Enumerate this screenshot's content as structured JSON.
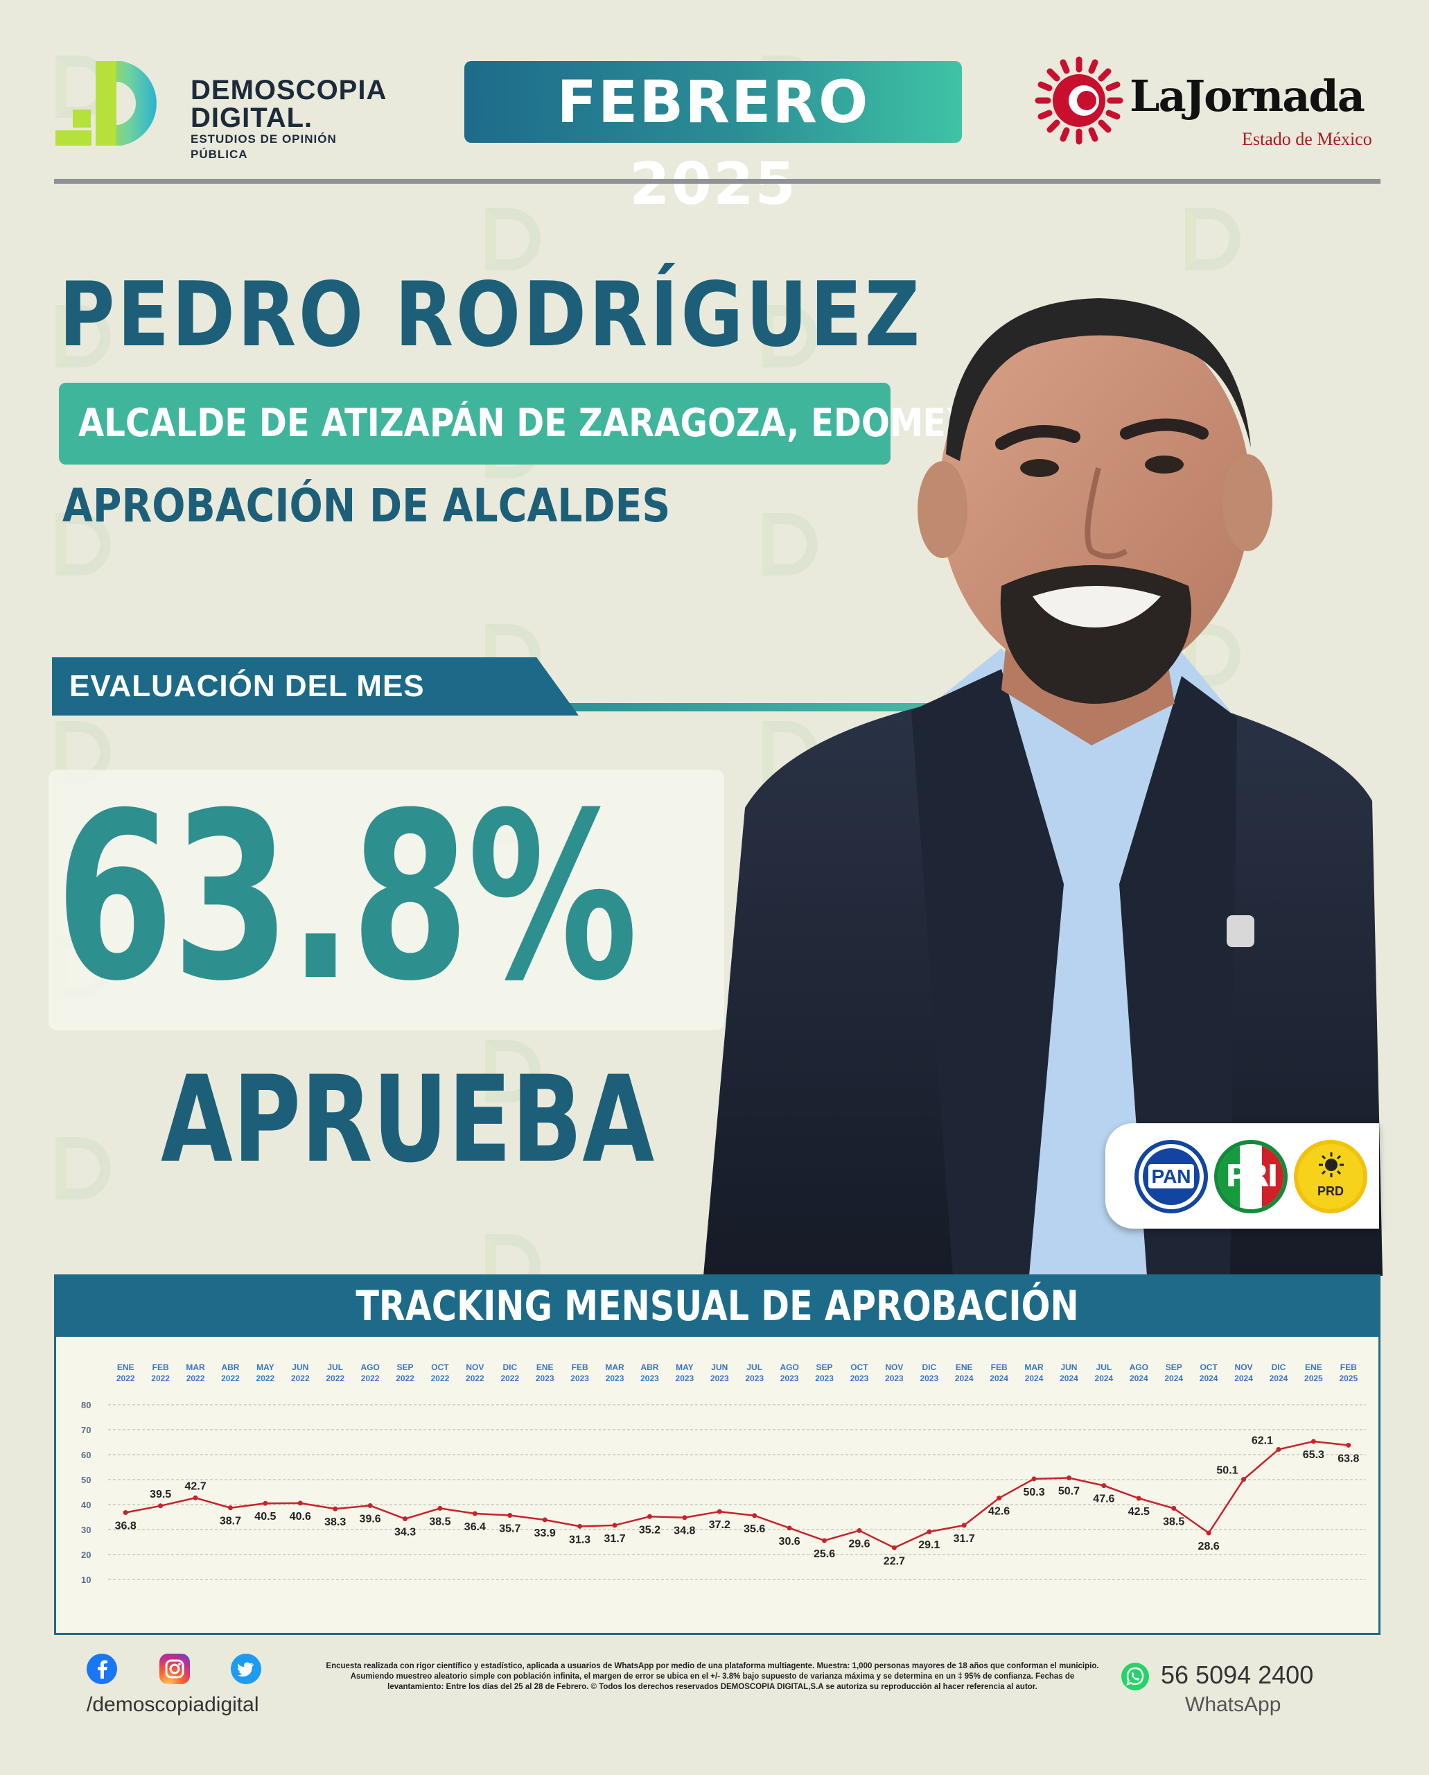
{
  "header": {
    "brand_line1": "DEMOSCOPIA",
    "brand_line2": "DIGITAL.",
    "brand_tagline": "ESTUDIOS DE OPINIÓN PÚBLICA",
    "date_badge": "FEBRERO 2025",
    "partner_name": "LaJornada",
    "partner_sub": "Estado de México"
  },
  "profile": {
    "name": "PEDRO RODRÍGUEZ",
    "role": "ALCALDE DE ATIZAPÁN DE ZARAGOZA, EDOMEX.",
    "subtitle": "APROBACIÓN DE ALCALDES"
  },
  "evaluation": {
    "tab_label": "EVALUACIÓN DEL MES",
    "value": "63.8%",
    "verdict": "APRUEBA"
  },
  "parties": [
    {
      "name": "PAN",
      "color": "#1245a1"
    },
    {
      "name": "PRI",
      "color": "#148a3b"
    },
    {
      "name": "PRD",
      "color": "#f7d21b"
    }
  ],
  "tracking": {
    "title": "TRACKING MENSUAL DE APROBACIÓN"
  },
  "chart_data": {
    "type": "line",
    "categories": [
      [
        "ENE",
        "2022"
      ],
      [
        "FEB",
        "2022"
      ],
      [
        "MAR",
        "2022"
      ],
      [
        "ABR",
        "2022"
      ],
      [
        "MAY",
        "2022"
      ],
      [
        "JUN",
        "2022"
      ],
      [
        "JUL",
        "2022"
      ],
      [
        "AGO",
        "2022"
      ],
      [
        "SEP",
        "2022"
      ],
      [
        "OCT",
        "2022"
      ],
      [
        "NOV",
        "2022"
      ],
      [
        "DIC",
        "2022"
      ],
      [
        "ENE",
        "2023"
      ],
      [
        "FEB",
        "2023"
      ],
      [
        "MAR",
        "2023"
      ],
      [
        "ABR",
        "2023"
      ],
      [
        "MAY",
        "2023"
      ],
      [
        "JUN",
        "2023"
      ],
      [
        "JUL",
        "2023"
      ],
      [
        "AGO",
        "2023"
      ],
      [
        "SEP",
        "2023"
      ],
      [
        "OCT",
        "2023"
      ],
      [
        "NOV",
        "2023"
      ],
      [
        "DIC",
        "2023"
      ],
      [
        "ENE",
        "2024"
      ],
      [
        "FEB",
        "2024"
      ],
      [
        "MAR",
        "2024"
      ],
      [
        "JUN",
        "2024"
      ],
      [
        "JUL",
        "2024"
      ],
      [
        "AGO",
        "2024"
      ],
      [
        "SEP",
        "2024"
      ],
      [
        "OCT",
        "2024"
      ],
      [
        "NOV",
        "2024"
      ],
      [
        "DIC",
        "2024"
      ],
      [
        "ENE",
        "2025"
      ],
      [
        "FEB",
        "2025"
      ]
    ],
    "values": [
      36.8,
      39.5,
      42.7,
      38.7,
      40.5,
      40.6,
      38.3,
      39.6,
      34.3,
      38.5,
      36.4,
      35.7,
      33.9,
      31.3,
      31.7,
      35.2,
      34.8,
      37.2,
      35.6,
      30.6,
      25.6,
      29.6,
      22.7,
      29.1,
      31.7,
      42.6,
      50.3,
      50.7,
      47.6,
      42.5,
      38.5,
      28.6,
      50.1,
      62.1,
      65.3,
      63.8
    ],
    "label_pos": [
      "b",
      "t",
      "t",
      "b",
      "b",
      "b",
      "b",
      "b",
      "b",
      "b",
      "b",
      "b",
      "b",
      "b",
      "b",
      "b",
      "b",
      "b",
      "b",
      "b",
      "b",
      "b",
      "b",
      "b",
      "b",
      "b",
      "b",
      "b",
      "b",
      "b",
      "b",
      "b",
      "l",
      "l",
      "b",
      "b"
    ],
    "yticks": [
      80,
      70,
      60,
      50,
      40,
      30,
      20,
      10
    ],
    "ylim": [
      10,
      80
    ],
    "line_color": "#c8232a",
    "grid": true
  },
  "footer": {
    "handle": "/demoscopiadigital",
    "disclaimer": "Encuesta realizada con rigor científico y estadístico, aplicada a usuarios de WhatsApp por medio de una plataforma multiagente. Muestra: 1,000 personas mayores de 18 años que conforman el municipio. Asumiendo muestreo aleatorio simple con población infinita, el margen de error se ubica en el +/- 3.8% bajo supuesto de varianza máxima y se determina en un ‡ 95% de confianza. Fechas de levantamiento: Entre los días del 25 al 28 de Febrero. © Todos los derechos reservados DEMOSCOPIA DIGITAL,S.A se autoriza su reproducción al hacer referencia al autor.",
    "phone": "56 5094 2400",
    "phone_label": "WhatsApp",
    "icons": [
      "facebook-icon",
      "instagram-icon",
      "twitter-icon",
      "whatsapp-icon"
    ]
  }
}
